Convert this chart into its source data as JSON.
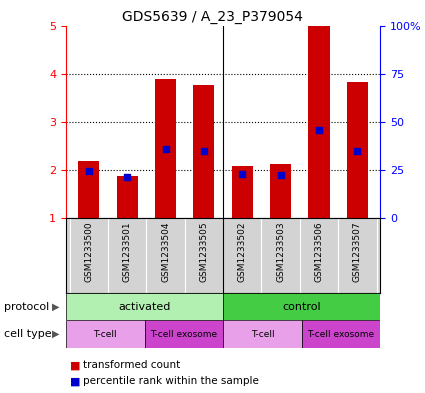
{
  "title": "GDS5639 / A_23_P379054",
  "samples": [
    "GSM1233500",
    "GSM1233501",
    "GSM1233504",
    "GSM1233505",
    "GSM1233502",
    "GSM1233503",
    "GSM1233506",
    "GSM1233507"
  ],
  "transformed_count": [
    2.18,
    1.87,
    3.9,
    3.77,
    2.08,
    2.12,
    5.0,
    3.82
  ],
  "percentile_rank": [
    1.97,
    1.86,
    2.43,
    2.4,
    1.91,
    1.9,
    2.83,
    2.4
  ],
  "ylim": [
    1,
    5
  ],
  "yticks_left": [
    1,
    2,
    3,
    4,
    5
  ],
  "yticks_right_vals": [
    0,
    25,
    50,
    75,
    100
  ],
  "yticks_right_labels": [
    "0",
    "25",
    "50",
    "75",
    "100%"
  ],
  "bar_color": "#cc0000",
  "pct_color": "#0000cc",
  "bar_width": 0.55,
  "bg_color": "#d3d3d3",
  "protocol_activated_color": "#b2f0b2",
  "protocol_control_color": "#44cc44",
  "cell_tcell_color": "#e8a0e8",
  "cell_exosome_color": "#cc44cc",
  "legend_transformed": "transformed count",
  "legend_percentile": "percentile rank within the sample"
}
